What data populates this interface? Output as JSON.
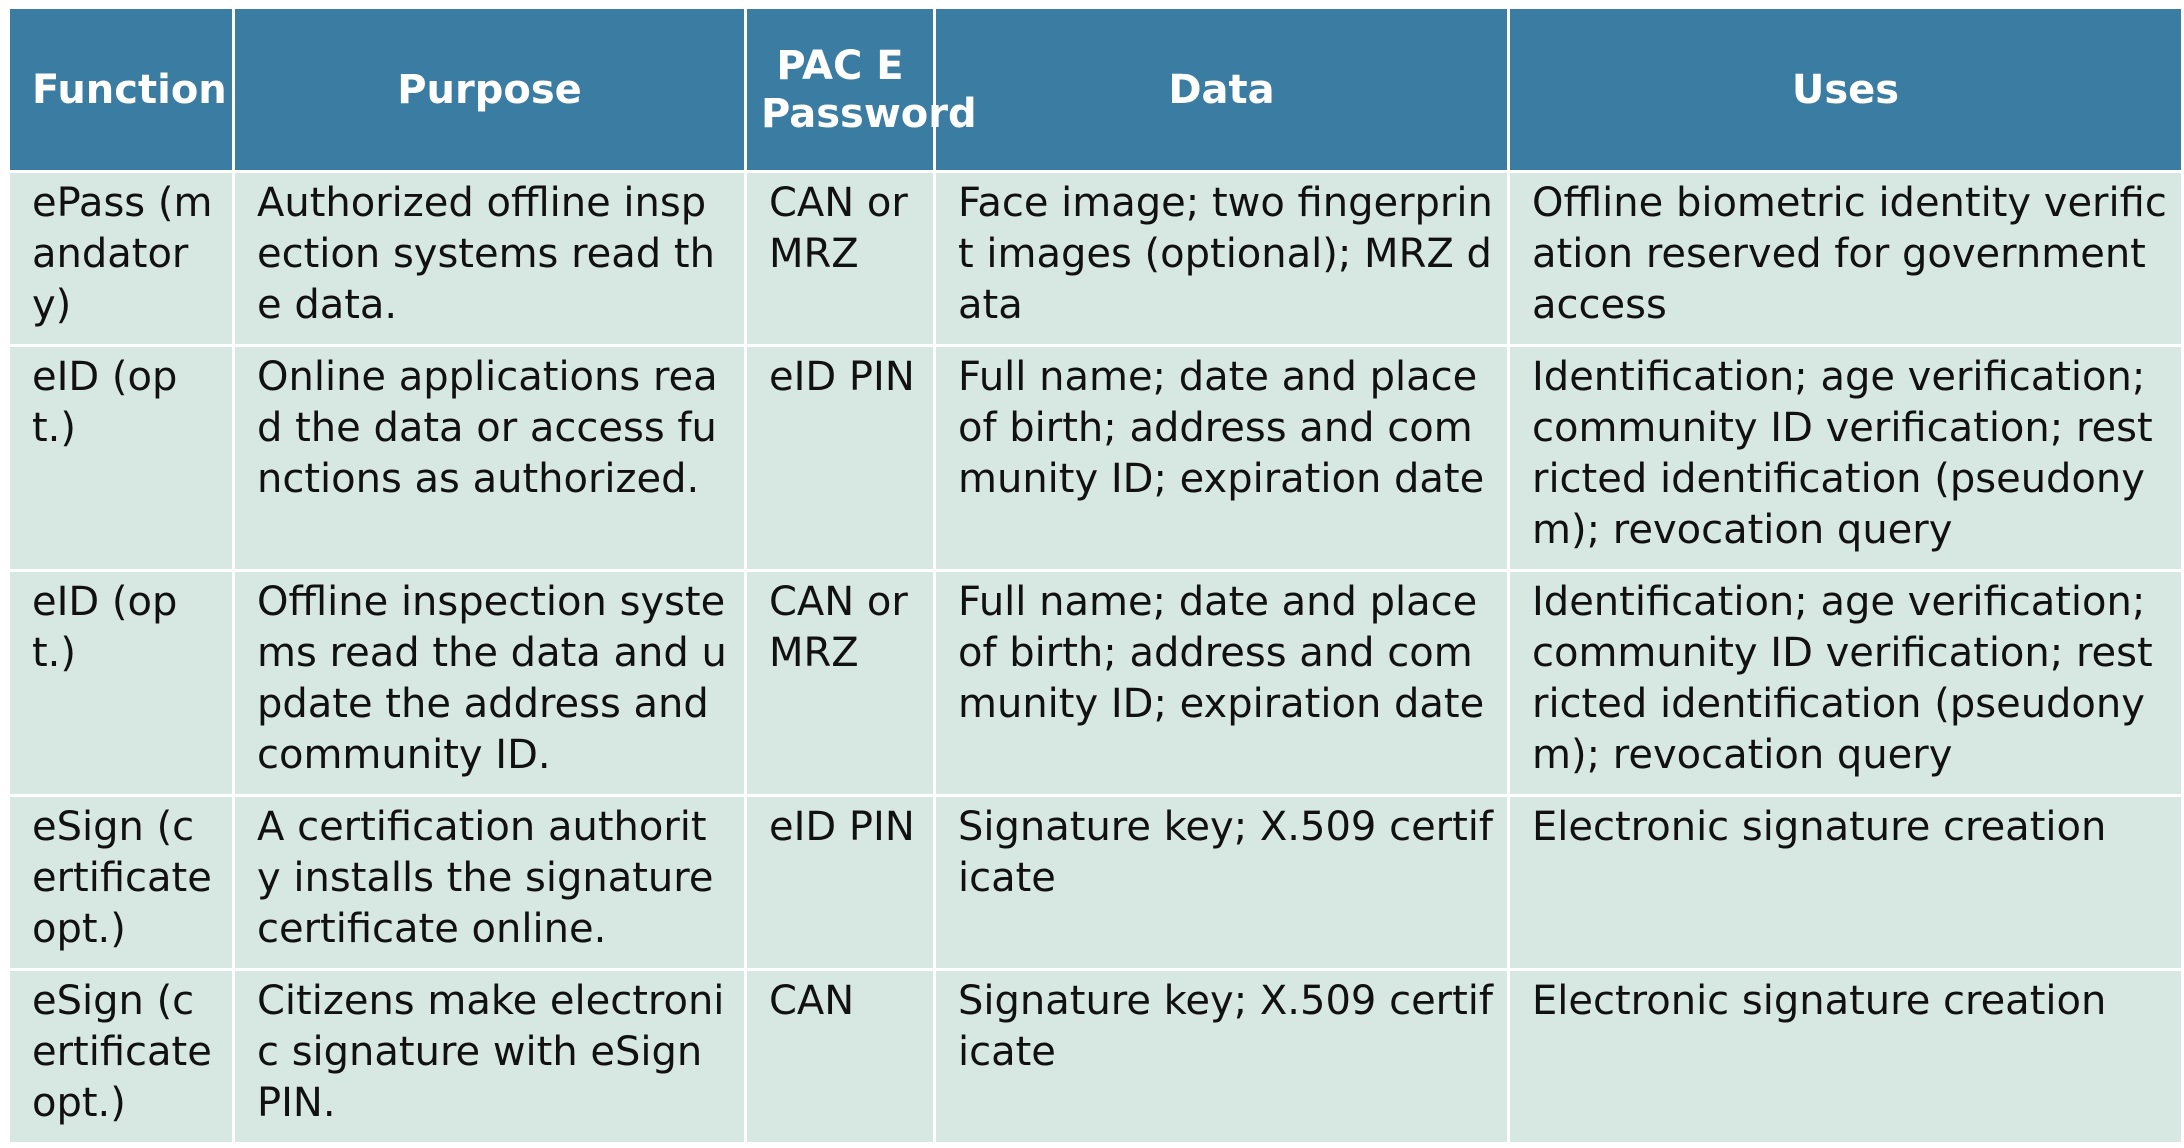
{
  "table": {
    "headers": {
      "function": "Function",
      "purpose": "Purpose",
      "password": "PAC E Password",
      "data": "Data",
      "uses": "Uses"
    },
    "rows": [
      {
        "function": "ePass (mandatory)",
        "purpose": "Authorized offline inspection systems read the data.",
        "password": "CAN or MRZ",
        "data": "Face image; two fingerprint images (optional); MRZ data",
        "uses": "Offline biometric identity verification reserved for government access"
      },
      {
        "function": "eID (opt.)",
        "purpose": "Online applications read the data or access functions as authorized.",
        "password": "eID PIN",
        "data": "Full name; date and place of birth; address and community ID; expiration date",
        "uses": "Identification; age verification; community ID verification; restricted identification (pseudonym); revocation query"
      },
      {
        "function": "eID (opt.)",
        "purpose": "Offline inspection systems read the data and update the address and community ID.",
        "password": "CAN or MRZ",
        "data": "Full name; date and place of birth; address and community ID; expiration date",
        "uses": "Identification; age verification; community ID verification; restricted identification (pseudonym); revocation query"
      },
      {
        "function": "eSign (certificate opt.)",
        "purpose": "A certification authority installs the signature certificate online.",
        "password": "eID PIN",
        "data": "Signature key; X.509 certificate",
        "uses": "Electronic signature creation"
      },
      {
        "function": "eSign (certificate opt.)",
        "purpose": "Citizens make electronic signature with eSign PIN.",
        "password": "CAN",
        "data": "Signature key; X.509 certificate",
        "uses": "Electronic signature creation"
      }
    ]
  },
  "colors": {
    "header_background": "#3a7ca2",
    "header_text": "#ffffff",
    "cell_background": "#d7e7e2",
    "cell_text": "#111111",
    "border": "#ffffff"
  }
}
